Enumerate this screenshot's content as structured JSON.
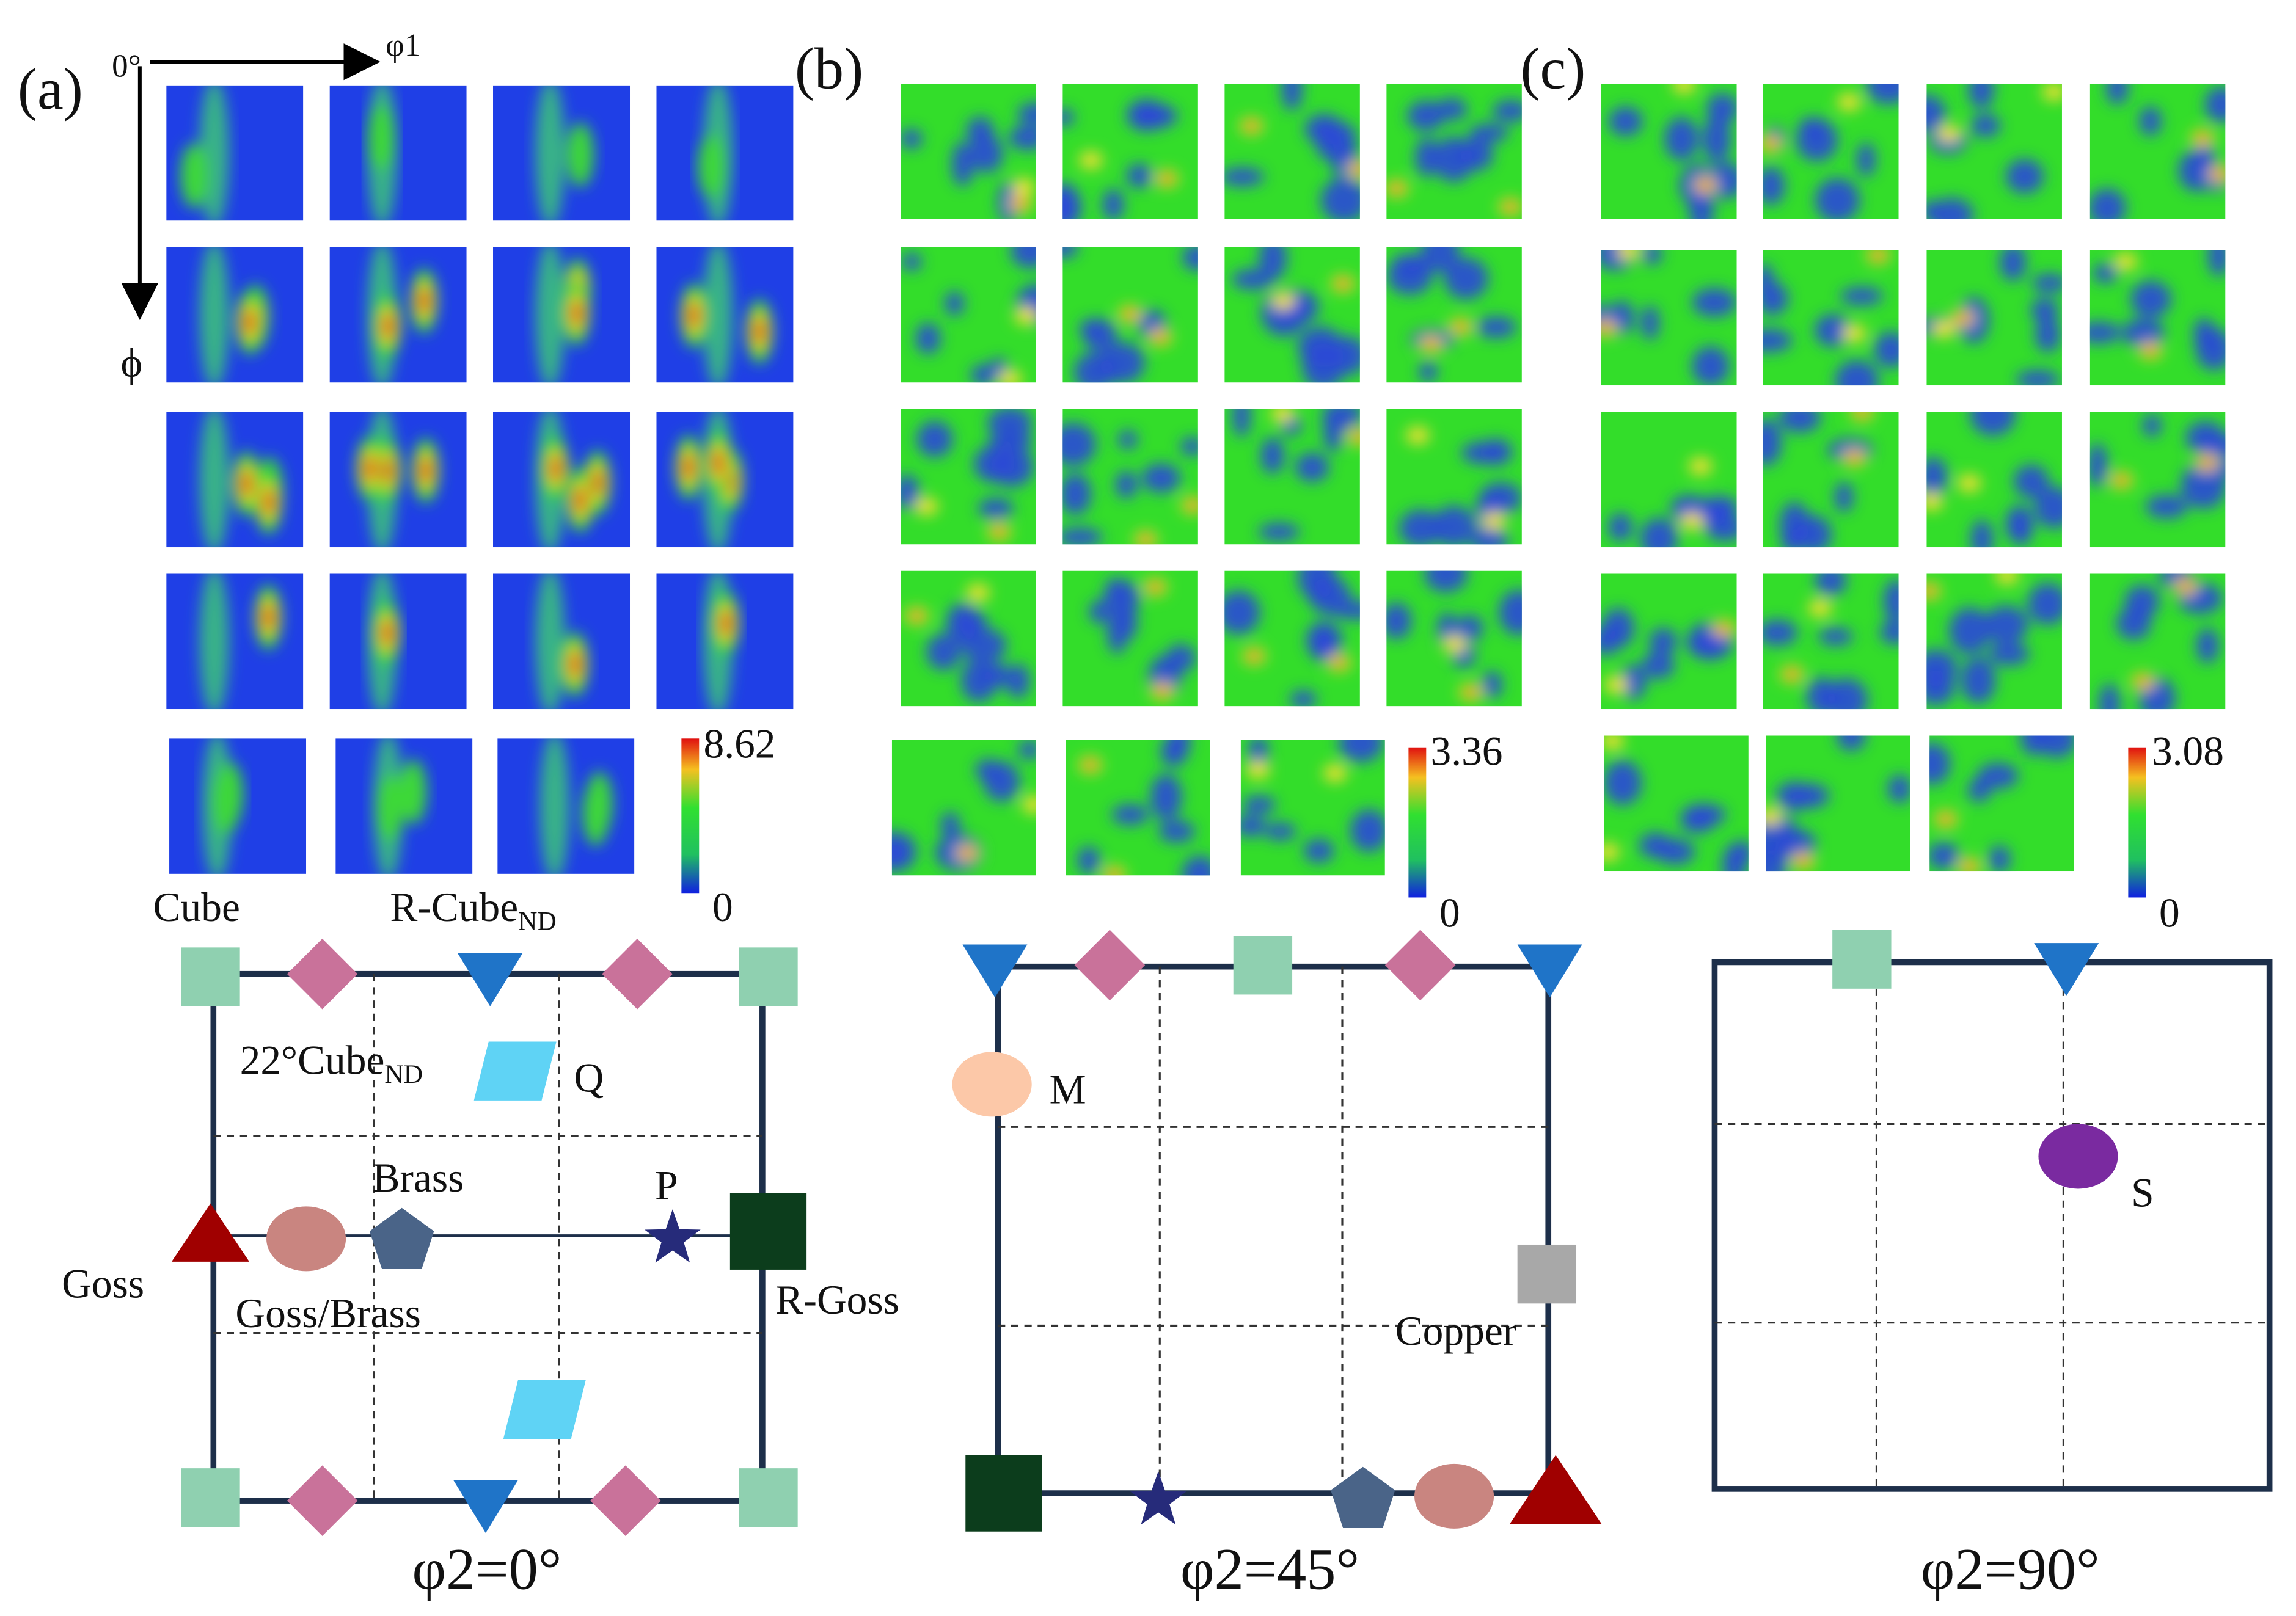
{
  "panels": [
    {
      "label": "(a)",
      "colorbar": {
        "max": 8.62,
        "min": 0
      }
    },
    {
      "label": "(b)",
      "colorbar": {
        "max": 3.36,
        "min": 0
      }
    },
    {
      "label": "(c)",
      "colorbar": {
        "max": 3.08,
        "min": 0
      }
    }
  ],
  "axes": {
    "origin": "0°",
    "x": "φ1",
    "y": "ϕ"
  },
  "sections": [
    {
      "title": "φ2=0°",
      "labels": {
        "cube": "Cube",
        "rcube": {
          "text": "R-Cube",
          "sub": "ND"
        },
        "cube22": {
          "text": "22°Cube",
          "sub": "ND"
        },
        "q": "Q",
        "brass": "Brass",
        "p": "P",
        "goss": "Goss",
        "gossbrass": "Goss/Brass",
        "rgoss": "R-Goss"
      }
    },
    {
      "title": "φ2=45°",
      "labels": {
        "m": "M",
        "copper": "Copper"
      }
    },
    {
      "title": "φ2=90°",
      "labels": {
        "s": "S"
      }
    }
  ]
}
